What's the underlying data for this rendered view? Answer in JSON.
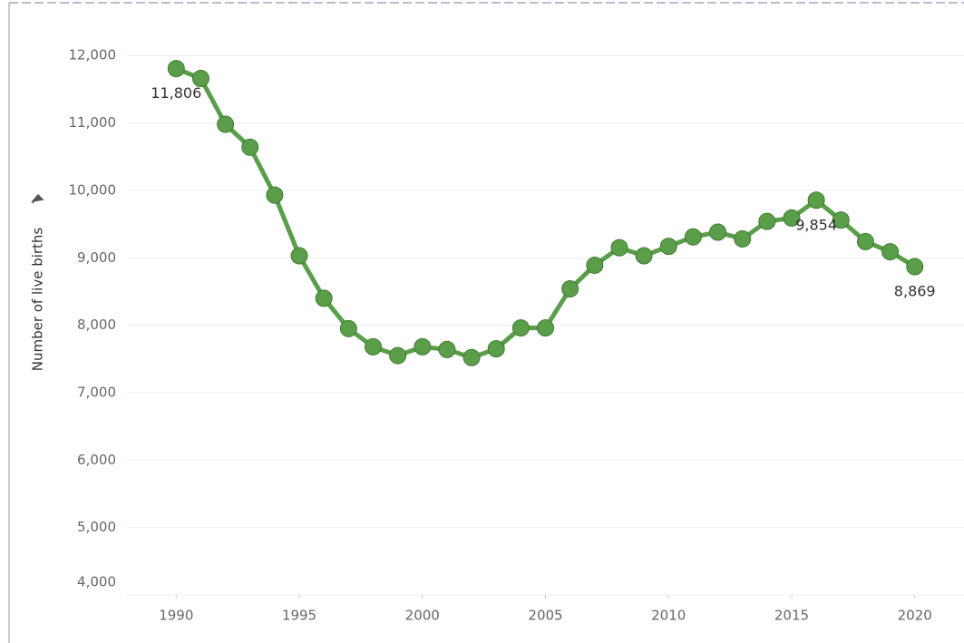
{
  "chart_data": {
    "type": "line",
    "y_label": "Number of live births",
    "x": [
      1990,
      1991,
      1992,
      1993,
      1994,
      1995,
      1996,
      1997,
      1998,
      1999,
      2000,
      2001,
      2002,
      2003,
      2004,
      2005,
      2006,
      2007,
      2008,
      2009,
      2010,
      2011,
      2012,
      2013,
      2014,
      2015,
      2016,
      2017,
      2018,
      2019,
      2020
    ],
    "series": [
      {
        "color": "#5a9e4a",
        "values": [
          11806,
          11660,
          10980,
          10640,
          9930,
          9030,
          8400,
          7950,
          7680,
          7550,
          7680,
          7640,
          7520,
          7650,
          7960,
          7960,
          8540,
          8890,
          9150,
          9030,
          9170,
          9310,
          9380,
          9280,
          9540,
          9590,
          9854,
          9560,
          9240,
          9090,
          8869
        ],
        "value_labels": [
          "11,806",
          null,
          null,
          null,
          null,
          null,
          null,
          null,
          null,
          null,
          null,
          null,
          null,
          null,
          null,
          null,
          null,
          null,
          null,
          null,
          null,
          null,
          null,
          null,
          null,
          null,
          "9,854",
          null,
          null,
          null,
          "8,869"
        ]
      }
    ],
    "xlim": [
      1988,
      2022
    ],
    "xticks": [
      1990,
      1995,
      2000,
      2005,
      2010,
      2015,
      2020
    ],
    "ylim": [
      4000,
      12420
    ],
    "yticks": [
      {
        "value": 4000,
        "label": "4,000"
      },
      {
        "value": 5000,
        "label": "5,000"
      },
      {
        "value": 6000,
        "label": "6,000"
      },
      {
        "value": 7000,
        "label": "7,000"
      },
      {
        "value": 8000,
        "label": "8,000"
      },
      {
        "value": 9000,
        "label": "9,000"
      },
      {
        "value": 10000,
        "label": "10,000"
      },
      {
        "value": 11000,
        "label": "11,000"
      },
      {
        "value": 12000,
        "label": "12,000"
      }
    ],
    "grid": true
  }
}
